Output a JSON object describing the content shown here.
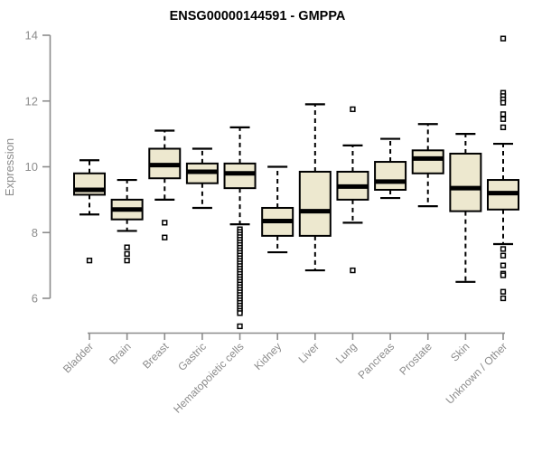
{
  "window": {
    "background": "#FFFFFF"
  },
  "chart_data": {
    "type": "boxplot",
    "title": "ENSG00000144591 - GMPPA",
    "ylabel": "Expression",
    "xlabel": "",
    "yticks": [
      6,
      8,
      10,
      12,
      14
    ],
    "ylim": [
      5.0,
      14.3
    ],
    "grid": false,
    "legend": "none",
    "colors": {
      "box_fill": "#EDE8CF",
      "box_stroke": "#000000",
      "median": "#000000",
      "whisker": "#000000",
      "outlier_stroke": "#000000",
      "axis": "#8C8C8C",
      "title": "#000000",
      "background": "#FFFFFF"
    },
    "categories": [
      "Bladder",
      "Brain",
      "Breast",
      "Gastric",
      "Hematopoietic cells",
      "Kidney",
      "Liver",
      "Lung",
      "Pancreas",
      "Prostate",
      "Skin",
      "Unknown / Other"
    ],
    "series": [
      {
        "category": "Bladder",
        "whisker_low": 8.55,
        "q1": 9.15,
        "median": 9.3,
        "q3": 9.8,
        "whisker_high": 10.2,
        "outliers": [
          7.15
        ]
      },
      {
        "category": "Brain",
        "whisker_low": 8.05,
        "q1": 8.4,
        "median": 8.7,
        "q3": 9.0,
        "whisker_high": 9.6,
        "outliers": [
          7.55,
          7.35,
          7.15
        ]
      },
      {
        "category": "Breast",
        "whisker_low": 9.0,
        "q1": 9.65,
        "median": 10.05,
        "q3": 10.55,
        "whisker_high": 11.1,
        "outliers": [
          8.3,
          7.85
        ]
      },
      {
        "category": "Gastric",
        "whisker_low": 8.75,
        "q1": 9.5,
        "median": 9.85,
        "q3": 10.1,
        "whisker_high": 10.55,
        "outliers": []
      },
      {
        "category": "Hematopoietic cells",
        "whisker_low": 8.25,
        "q1": 9.35,
        "median": 9.8,
        "q3": 10.1,
        "whisker_high": 11.2,
        "outliers": [
          8.1,
          8.02,
          7.94,
          7.86,
          7.78,
          7.7,
          7.62,
          7.54,
          7.46,
          7.38,
          7.3,
          7.22,
          7.14,
          7.06,
          6.98,
          6.9,
          6.82,
          6.74,
          6.66,
          6.58,
          6.5,
          6.42,
          6.34,
          6.26,
          6.18,
          6.1,
          6.02,
          5.94,
          5.86,
          5.78,
          5.7,
          5.62,
          5.55,
          5.15
        ]
      },
      {
        "category": "Kidney",
        "whisker_low": 7.4,
        "q1": 7.9,
        "median": 8.35,
        "q3": 8.75,
        "whisker_high": 10.0,
        "outliers": []
      },
      {
        "category": "Liver",
        "whisker_low": 6.85,
        "q1": 7.9,
        "median": 8.65,
        "q3": 9.85,
        "whisker_high": 11.9,
        "outliers": []
      },
      {
        "category": "Lung",
        "whisker_low": 8.3,
        "q1": 9.0,
        "median": 9.4,
        "q3": 9.85,
        "whisker_high": 10.65,
        "outliers": [
          11.75,
          6.85
        ]
      },
      {
        "category": "Pancreas",
        "whisker_low": 9.05,
        "q1": 9.3,
        "median": 9.55,
        "q3": 10.15,
        "whisker_high": 10.85,
        "outliers": []
      },
      {
        "category": "Prostate",
        "whisker_low": 8.8,
        "q1": 9.8,
        "median": 10.25,
        "q3": 10.5,
        "whisker_high": 11.3,
        "outliers": []
      },
      {
        "category": "Skin",
        "whisker_low": 6.5,
        "q1": 8.65,
        "median": 9.35,
        "q3": 10.4,
        "whisker_high": 11.0,
        "outliers": []
      },
      {
        "category": "Unknown / Other",
        "whisker_low": 7.65,
        "q1": 8.7,
        "median": 9.2,
        "q3": 9.6,
        "whisker_high": 10.7,
        "outliers": [
          13.9,
          12.25,
          12.15,
          12.05,
          11.95,
          11.6,
          11.45,
          11.2,
          7.5,
          7.3,
          7.0,
          6.75,
          6.7,
          6.2,
          6.0
        ]
      }
    ]
  }
}
